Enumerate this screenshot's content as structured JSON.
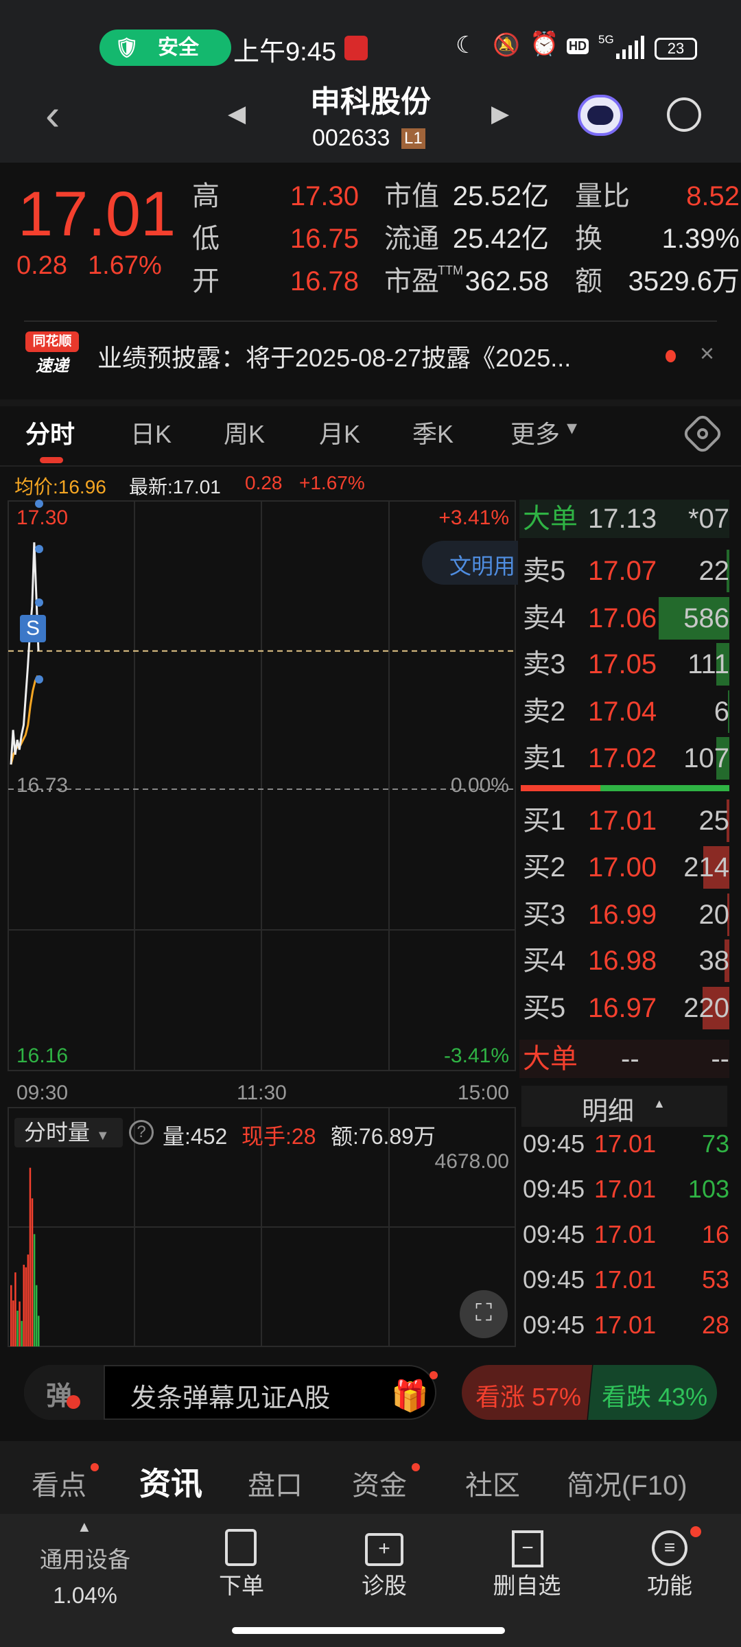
{
  "status": {
    "safe_label": "安全",
    "time": "上午9:45",
    "battery": "23",
    "network": "5G",
    "icons": [
      "yuan-shield-icon",
      "app-notification-icon",
      "moon-icon",
      "mute-bell-icon",
      "alarm-icon",
      "hd-icon",
      "signal-icon",
      "battery-icon"
    ]
  },
  "header": {
    "title": "申科股份",
    "code": "002633",
    "level_badge": "L1",
    "icons": [
      "back-chevron-icon",
      "prev-stock-icon",
      "next-stock-icon",
      "robot-assistant-icon",
      "search-icon"
    ]
  },
  "quote": {
    "price": "17.01",
    "change": "0.28",
    "change_pct": "1.67%",
    "rows": [
      {
        "l1": "高",
        "v1": "17.30",
        "l2": "市值",
        "v2": "25.52亿",
        "l3": "量比",
        "v3": "8.52"
      },
      {
        "l1": "低",
        "v1": "16.75",
        "l2": "流通",
        "v2": "25.42亿",
        "l3": "换",
        "v3": "1.39%"
      },
      {
        "l1": "开",
        "v1": "16.78",
        "l2": "市盈",
        "l2sup": "TTM",
        "v2": "362.58",
        "l3": "额",
        "v3": "3529.6万"
      }
    ]
  },
  "news": {
    "logo_top": "同花顺",
    "logo_bottom": "速递",
    "text": "业绩预披露：将于2025-08-27披露《2025...",
    "close": "×"
  },
  "tabs": {
    "items": [
      "分时",
      "日K",
      "周K",
      "月K",
      "季K",
      "更多"
    ],
    "active": 0,
    "more_arrow": "▾"
  },
  "info": {
    "avg": "均价:16.96",
    "latest": "最新:17.01",
    "change": "0.28",
    "change_pct": "+1.67%"
  },
  "chart": {
    "high_label": "17.30",
    "base_label": "16.73",
    "low_label": "16.16",
    "up_pct": "+3.41%",
    "zero_pct": "0.00%",
    "down_pct": "-3.41%",
    "bubble": "文明用",
    "signal": "S",
    "times": [
      "09:30",
      "11:30",
      "15:00"
    ]
  },
  "chart_data": {
    "type": "line",
    "ylim": [
      16.16,
      17.3
    ],
    "prev_close": 16.73,
    "last": 17.01,
    "x_range": [
      "09:30",
      "15:00"
    ],
    "minutes_total": 240,
    "price": [
      16.78,
      16.85,
      16.8,
      16.83,
      16.81,
      16.84,
      16.86,
      16.92,
      16.98,
      17.05,
      17.1,
      17.23,
      17.12,
      17.01
    ],
    "avg": [
      16.78,
      16.8,
      16.81,
      16.82,
      16.82,
      16.83,
      16.84,
      16.86,
      16.9,
      16.93,
      16.95,
      16.96
    ],
    "volume_max": 4678,
    "volume": [
      1200,
      900,
      1450,
      700,
      880,
      500,
      1600,
      1550,
      1800,
      3500,
      2900,
      2200,
      1200,
      600
    ],
    "volume_dir": [
      "up",
      "up",
      "up",
      "down",
      "up",
      "down",
      "up",
      "up",
      "up",
      "up",
      "up",
      "down",
      "down",
      "down"
    ]
  },
  "volume_panel": {
    "selector": "分时量",
    "vol": "量:452",
    "hand": "现手:28",
    "amount": "额:76.89万",
    "max": "4678.00"
  },
  "orderbook": {
    "big_top": {
      "label": "大单",
      "price": "17.13",
      "qty": "*07"
    },
    "asks": [
      {
        "l": "卖5",
        "p": "17.07",
        "q": "22",
        "n": 22
      },
      {
        "l": "卖4",
        "p": "17.06",
        "q": "586",
        "n": 586
      },
      {
        "l": "卖3",
        "p": "17.05",
        "q": "111",
        "n": 111
      },
      {
        "l": "卖2",
        "p": "17.04",
        "q": "6",
        "n": 6
      },
      {
        "l": "卖1",
        "p": "17.02",
        "q": "107",
        "n": 107
      }
    ],
    "bids": [
      {
        "l": "买1",
        "p": "17.01",
        "q": "25",
        "n": 25
      },
      {
        "l": "买2",
        "p": "17.00",
        "q": "214",
        "n": 214
      },
      {
        "l": "买3",
        "p": "16.99",
        "q": "20",
        "n": 20
      },
      {
        "l": "买4",
        "p": "16.98",
        "q": "38",
        "n": 38
      },
      {
        "l": "买5",
        "p": "16.97",
        "q": "220",
        "n": 220
      }
    ],
    "bid_ratio": 0.38,
    "big_bottom": {
      "label": "大单",
      "price": "--",
      "qty": "--"
    }
  },
  "ticks": {
    "title": "明细",
    "rows": [
      {
        "t": "09:45",
        "p": "17.01",
        "q": "73",
        "dir": "down"
      },
      {
        "t": "09:45",
        "p": "17.01",
        "q": "103",
        "dir": "down"
      },
      {
        "t": "09:45",
        "p": "17.01",
        "q": "16",
        "dir": "up"
      },
      {
        "t": "09:45",
        "p": "17.01",
        "q": "53",
        "dir": "up"
      },
      {
        "t": "09:45",
        "p": "17.01",
        "q": "28",
        "dir": "up"
      }
    ]
  },
  "danmaku": {
    "icon": "弹",
    "placeholder": "发条弹幕见证A股",
    "bull": "看涨 57%",
    "bear": "看跌 43%",
    "bull_pct": 57
  },
  "bottom_tabs": {
    "items": [
      "看点",
      "资讯",
      "盘口",
      "资金",
      "社区",
      "简况(F10)"
    ],
    "active": 1
  },
  "toolbar": {
    "sector": "通用设备",
    "sector_pct": "1.04%",
    "order": "下单",
    "diagnose": "诊股",
    "remove": "删自选",
    "func": "功能"
  },
  "colors": {
    "up": "#f4402e",
    "down": "#2fb344",
    "avg": "#f5a623",
    "bg": "#111111"
  }
}
